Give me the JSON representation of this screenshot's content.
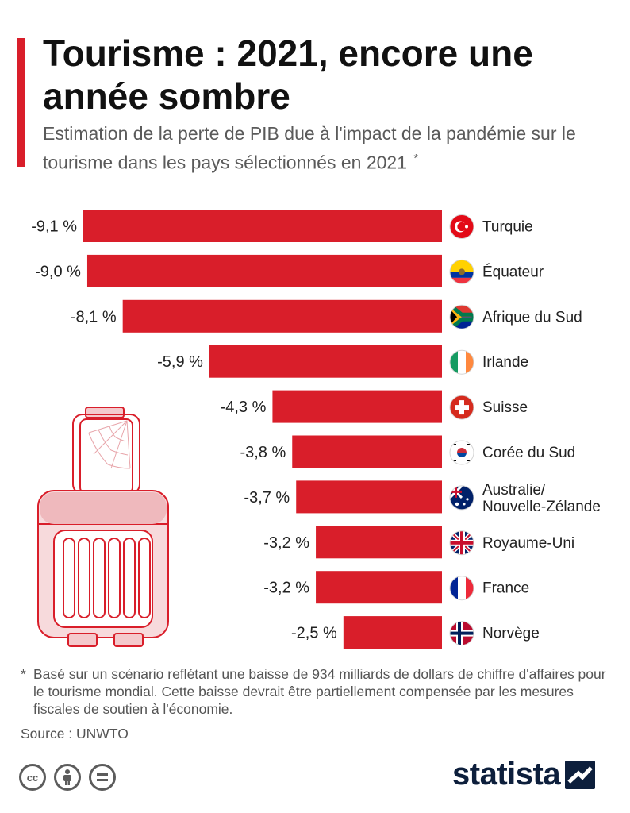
{
  "header": {
    "title": "Tourisme : 2021, encore une année sombre",
    "subtitle": "Estimation de la perte de PIB due à l'impact de la pandémie sur le tourisme dans les pays sélectionnés en 2021",
    "subtitle_mark": "*",
    "accent_color": "#d91e2a"
  },
  "chart_data": {
    "type": "bar",
    "orientation": "horizontal",
    "categories": [
      "Turquie",
      "Équateur",
      "Afrique du Sud",
      "Irlande",
      "Suisse",
      "Corée du Sud",
      "Australie/ Nouvelle-Zélande",
      "Royaume-Uni",
      "France",
      "Norvège"
    ],
    "values": [
      -9.1,
      -9.0,
      -8.1,
      -5.9,
      -4.3,
      -3.8,
      -3.7,
      -3.2,
      -3.2,
      -2.5
    ],
    "value_labels": [
      "-9,1 %",
      "-9,0 %",
      "-8,1 %",
      "-5,9 %",
      "-4,3 %",
      "-3,8 %",
      "-3,7 %",
      "-3,2 %",
      "-3,2 %",
      "-2,5 %"
    ],
    "flag_icons": [
      "turkey-flag-icon",
      "ecuador-flag-icon",
      "south-africa-flag-icon",
      "ireland-flag-icon",
      "switzerland-flag-icon",
      "south-korea-flag-icon",
      "australia-flag-icon",
      "united-kingdom-flag-icon",
      "france-flag-icon",
      "norway-flag-icon"
    ],
    "bar_color": "#d91e2a",
    "xlim": [
      -9.1,
      0
    ],
    "grid": false,
    "legend": "none"
  },
  "illustration": {
    "icon": "suitcase-with-cobweb-icon",
    "color": "#e8a6ab"
  },
  "footer": {
    "footnote_mark": "*",
    "footnote": "Basé sur un scénario reflétant une baisse de 934 milliards de dollars de chiffre d'affaires pour le tourisme mondial. Cette baisse devrait être partiellement compensée par les mesures fiscales de soutien à l'économie.",
    "source": "Source : UNWTO",
    "license_icons": [
      "cc-icon",
      "attribution-icon",
      "no-derivatives-icon"
    ],
    "cc_text": "cc",
    "brand": "statista",
    "brand_color": "#0d1f3c"
  }
}
